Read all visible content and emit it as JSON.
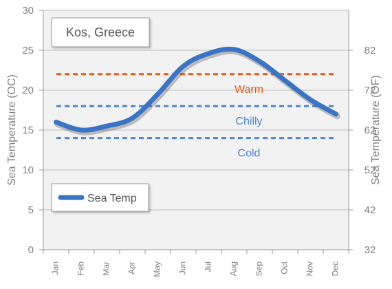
{
  "chart_data": {
    "type": "line",
    "title": "Kos, Greece",
    "categories": [
      "Jan",
      "Feb",
      "Mar",
      "Apr",
      "May",
      "Jun",
      "Jul",
      "Aug",
      "Sep",
      "Oct",
      "Nov",
      "Dec"
    ],
    "series": [
      {
        "name": "Sea Temp",
        "values": [
          16.0,
          15.0,
          15.5,
          16.5,
          19.5,
          23.0,
          24.6,
          25.1,
          23.6,
          21.2,
          18.8,
          17.0
        ],
        "color": "#3a74c4"
      }
    ],
    "ylabel_left": "Sea Temperature (OC)",
    "ylabel_right": "Sea Temperature (OF)",
    "ylim_left": [
      0,
      30
    ],
    "yticks_left": [
      "0",
      "5",
      "10",
      "15",
      "20",
      "25",
      "30"
    ],
    "ylim_right": [
      32,
      92
    ],
    "yticks_right": [
      "32",
      "42",
      "52",
      "62",
      "72",
      "82"
    ],
    "grid": "horizontal",
    "legend": "bottom-left",
    "title_box": "top-left",
    "thresholds": [
      {
        "label": "Warm",
        "value": 22,
        "color": "#e05a1a"
      },
      {
        "label": "Chilly",
        "value": 18,
        "color": "#4a86d0"
      },
      {
        "label": "Cold",
        "value": 14,
        "color": "#4a86d0"
      }
    ]
  }
}
